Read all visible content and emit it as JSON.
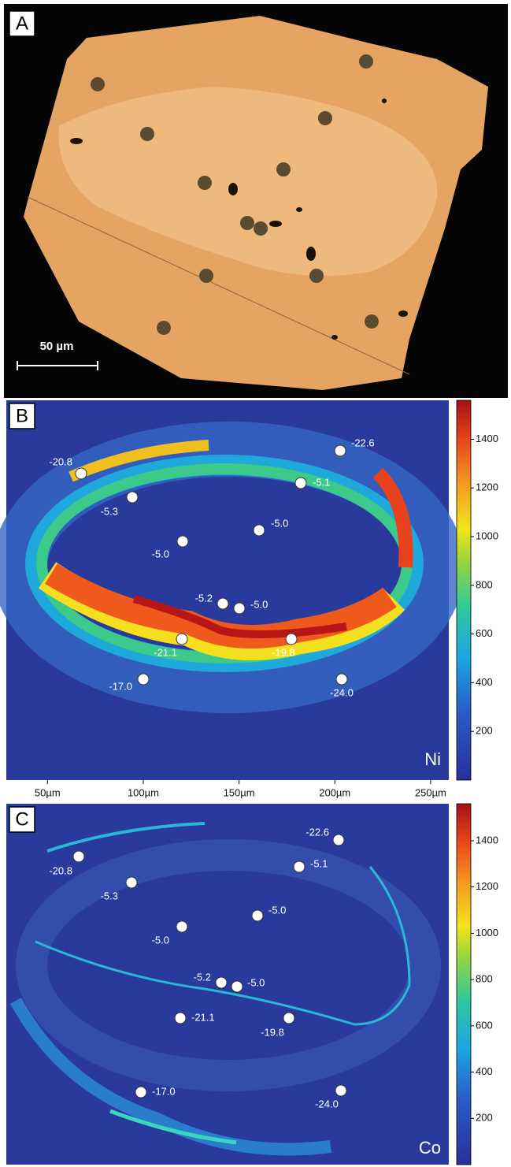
{
  "panels": [
    {
      "label": "A",
      "scale_bar": "50 µm"
    },
    {
      "label": "B",
      "element": "Ni",
      "spots": [
        "-20.8",
        "-22.6",
        "-5.1",
        "-5.3",
        "-5.0",
        "-5.0",
        "-5.2",
        "-5.0",
        "-21.1",
        "-19.8",
        "-17.0",
        "-24.0"
      ],
      "colorbar": {
        "lim": [
          0,
          1560
        ],
        "ticks": [
          200,
          400,
          600,
          800,
          1000,
          1200,
          1400
        ]
      },
      "x_axis": {
        "lim": [
          28.5,
          259.5
        ],
        "ticks": [
          {
            "value": 50,
            "label": "50µm"
          },
          {
            "value": 100,
            "label": "100µm"
          },
          {
            "value": 150,
            "label": "150µm"
          },
          {
            "value": 200,
            "label": "200µm"
          },
          {
            "value": 250,
            "label": "250µm"
          }
        ]
      }
    },
    {
      "label": "C",
      "element": "Co",
      "spots": [
        "-20.8",
        "-22.6",
        "-5.1",
        "-5.3",
        "-5.0",
        "-5.0",
        "-5.2",
        "-5.0",
        "-21.1",
        "-19.8",
        "-17.0",
        "-24.0"
      ],
      "colorbar": {
        "lim": [
          0,
          1560
        ],
        "ticks": [
          200,
          400,
          600,
          800,
          1000,
          1200,
          1400
        ]
      }
    }
  ]
}
